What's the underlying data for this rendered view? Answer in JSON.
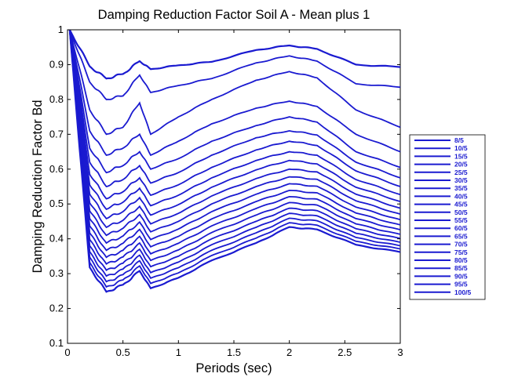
{
  "chart_data": {
    "type": "line",
    "title": "Damping Reduction Factor Soil A - Mean plus 1",
    "xlabel": "Periods (sec)",
    "ylabel": "Damping Reduction Factor Bd",
    "xlim": [
      0,
      3
    ],
    "ylim": [
      0.1,
      1
    ],
    "xticks": [
      0,
      0.5,
      1,
      1.5,
      2,
      2.5,
      3
    ],
    "xtick_labels": [
      "0",
      "0.5",
      "1",
      "1.5",
      "2",
      "2.5",
      "3"
    ],
    "yticks": [
      0.1,
      0.2,
      0.3,
      0.4,
      0.5,
      0.6,
      0.7,
      0.8,
      0.9,
      1
    ],
    "ytick_labels": [
      "0.1",
      "0.2",
      "0.3",
      "0.4",
      "0.5",
      "0.6",
      "0.7",
      "0.8",
      "0.9",
      "1"
    ],
    "grid": false,
    "legend_position": "right",
    "line_color": "#1a1ad0",
    "series": [
      {
        "name": "8/5",
        "values": [
          1.0,
          0.895,
          0.86,
          0.873,
          0.91,
          0.887,
          0.898,
          0.908,
          0.942,
          0.955,
          0.945,
          0.9,
          0.893
        ]
      },
      {
        "name": "10/5",
        "values": [
          1.0,
          0.85,
          0.8,
          0.81,
          0.87,
          0.82,
          0.84,
          0.86,
          0.905,
          0.925,
          0.91,
          0.845,
          0.835
        ]
      },
      {
        "name": "15/5",
        "values": [
          1.0,
          0.77,
          0.7,
          0.72,
          0.79,
          0.7,
          0.75,
          0.8,
          0.855,
          0.88,
          0.862,
          0.77,
          0.72
        ]
      },
      {
        "name": "20/5",
        "values": [
          1.0,
          0.71,
          0.64,
          0.66,
          0.7,
          0.64,
          0.68,
          0.73,
          0.775,
          0.795,
          0.78,
          0.7,
          0.65
        ]
      },
      {
        "name": "25/5",
        "values": [
          1.0,
          0.66,
          0.59,
          0.61,
          0.65,
          0.6,
          0.63,
          0.68,
          0.725,
          0.75,
          0.735,
          0.65,
          0.605
        ]
      },
      {
        "name": "30/5",
        "values": [
          1.0,
          0.62,
          0.55,
          0.57,
          0.61,
          0.56,
          0.59,
          0.64,
          0.69,
          0.71,
          0.698,
          0.62,
          0.575
        ]
      },
      {
        "name": "35/5",
        "values": [
          1.0,
          0.585,
          0.515,
          0.535,
          0.575,
          0.525,
          0.555,
          0.605,
          0.655,
          0.68,
          0.668,
          0.595,
          0.55
        ]
      },
      {
        "name": "40/5",
        "values": [
          1.0,
          0.555,
          0.485,
          0.505,
          0.545,
          0.495,
          0.525,
          0.575,
          0.625,
          0.65,
          0.64,
          0.57,
          0.527
        ]
      },
      {
        "name": "45/5",
        "values": [
          1.0,
          0.528,
          0.458,
          0.478,
          0.518,
          0.468,
          0.498,
          0.548,
          0.598,
          0.625,
          0.615,
          0.548,
          0.507
        ]
      },
      {
        "name": "50/5",
        "values": [
          1.0,
          0.503,
          0.433,
          0.453,
          0.493,
          0.443,
          0.473,
          0.523,
          0.573,
          0.6,
          0.592,
          0.528,
          0.488
        ]
      },
      {
        "name": "55/5",
        "values": [
          1.0,
          0.48,
          0.41,
          0.43,
          0.47,
          0.42,
          0.45,
          0.5,
          0.55,
          0.578,
          0.571,
          0.509,
          0.471
        ]
      },
      {
        "name": "60/5",
        "values": [
          1.0,
          0.458,
          0.388,
          0.408,
          0.448,
          0.398,
          0.428,
          0.478,
          0.528,
          0.558,
          0.551,
          0.491,
          0.455
        ]
      },
      {
        "name": "65/5",
        "values": [
          1.0,
          0.437,
          0.367,
          0.387,
          0.427,
          0.377,
          0.407,
          0.457,
          0.507,
          0.539,
          0.532,
          0.474,
          0.44
        ]
      },
      {
        "name": "70/5",
        "values": [
          1.0,
          0.417,
          0.347,
          0.367,
          0.407,
          0.357,
          0.387,
          0.437,
          0.487,
          0.521,
          0.514,
          0.458,
          0.426
        ]
      },
      {
        "name": "75/5",
        "values": [
          1.0,
          0.398,
          0.328,
          0.348,
          0.388,
          0.338,
          0.368,
          0.418,
          0.468,
          0.504,
          0.497,
          0.443,
          0.413
        ]
      },
      {
        "name": "80/5",
        "values": [
          1.0,
          0.38,
          0.31,
          0.33,
          0.37,
          0.32,
          0.35,
          0.4,
          0.45,
          0.488,
          0.481,
          0.429,
          0.401
        ]
      },
      {
        "name": "85/5",
        "values": [
          1.0,
          0.363,
          0.293,
          0.313,
          0.353,
          0.303,
          0.333,
          0.383,
          0.433,
          0.473,
          0.466,
          0.416,
          0.39
        ]
      },
      {
        "name": "90/5",
        "values": [
          1.0,
          0.347,
          0.277,
          0.297,
          0.337,
          0.287,
          0.317,
          0.367,
          0.417,
          0.459,
          0.452,
          0.404,
          0.38
        ]
      },
      {
        "name": "95/5",
        "values": [
          1.0,
          0.332,
          0.262,
          0.282,
          0.322,
          0.272,
          0.302,
          0.352,
          0.402,
          0.446,
          0.439,
          0.393,
          0.371
        ]
      },
      {
        "name": "100/5",
        "values": [
          1.0,
          0.318,
          0.248,
          0.268,
          0.308,
          0.258,
          0.288,
          0.338,
          0.388,
          0.434,
          0.427,
          0.383,
          0.362
        ]
      }
    ],
    "x": [
      0.02,
      0.2,
      0.35,
      0.5,
      0.65,
      0.75,
      1.0,
      1.3,
      1.7,
      2.0,
      2.25,
      2.6,
      3.0
    ]
  }
}
